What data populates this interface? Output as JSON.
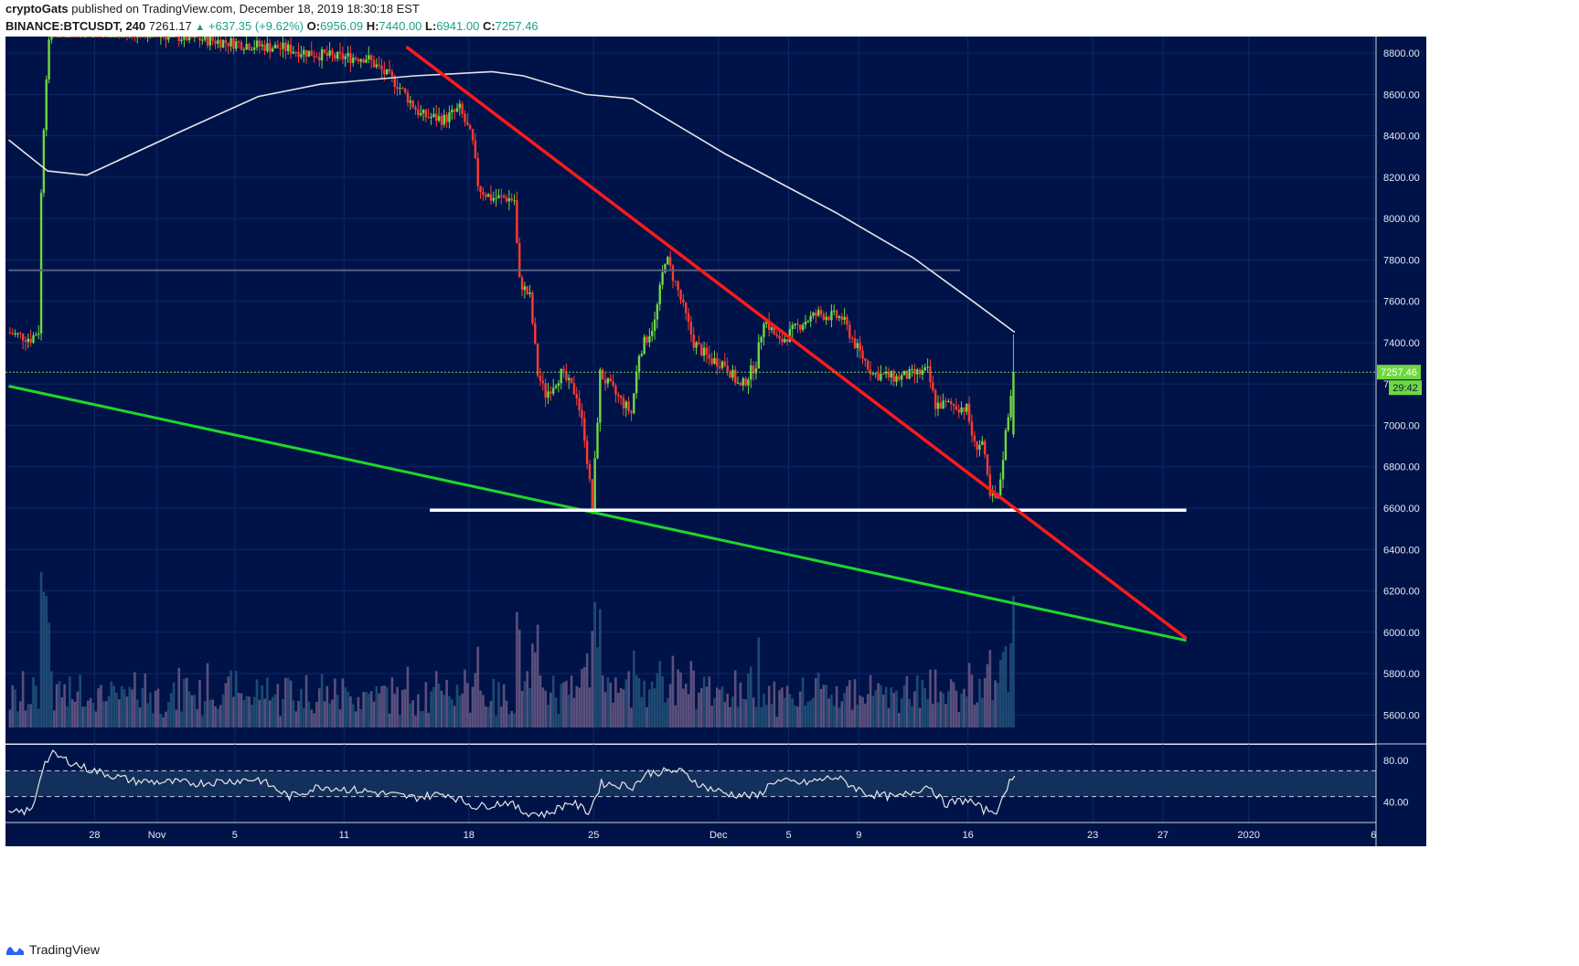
{
  "header": {
    "author": "cryptoGats",
    "published": "published on TradingView.com, December 18, 2019 18:30:18 EST",
    "symbol": "BINANCE:BTCUSDT, 240",
    "last": "7261.17",
    "change": "+637.35 (+9.62%)",
    "o_label": "O:",
    "o": "6956.09",
    "h_label": "H:",
    "h": "7440.00",
    "l_label": "L:",
    "l": "6941.00",
    "c_label": "C:",
    "c": "7257.46"
  },
  "footer": {
    "brand": "TradingView"
  },
  "chart_data": {
    "type": "candlestick",
    "timeframe": "240",
    "colors": {
      "background": "#001348",
      "up": "#6fd841",
      "down": "#ff3b30",
      "ma": "#e6e6e6",
      "resistance_trend": "#ff1a1a",
      "support_trend": "#1fd62d",
      "support_level": "#ffffff",
      "price_tag": "#6fd841"
    },
    "y_axis": {
      "range": [
        5460,
        8880
      ],
      "ticks": [
        "8800.00",
        "8600.00",
        "8400.00",
        "8200.00",
        "8000.00",
        "7800.00",
        "7600.00",
        "7400.00",
        "7200.00",
        "7000.00",
        "6800.00",
        "6600.00",
        "6400.00",
        "6200.00",
        "6000.00",
        "5800.00",
        "5600.00"
      ]
    },
    "x_axis": {
      "labels": [
        "28",
        "Nov",
        "5",
        "11",
        "18",
        "25",
        "Dec",
        "5",
        "9",
        "16",
        "23",
        "27",
        "2020",
        "6"
      ],
      "label_day_index": [
        5.5,
        9.5,
        14.5,
        21.5,
        29.5,
        37.5,
        45.5,
        50,
        54.5,
        61.5,
        69.5,
        74,
        79.5,
        87.5
      ]
    },
    "current_price": {
      "label": "7257.46",
      "timer": "29:42",
      "value": 7257.46
    },
    "ohlc_last_bar": {
      "open": 6956.09,
      "high": 7440.0,
      "low": 6941.0,
      "close": 7257.46
    },
    "price_path": [
      {
        "day": 0,
        "price": 7450
      },
      {
        "day": 1.5,
        "price": 7420
      },
      {
        "day": 2,
        "price": 7460
      },
      {
        "day": 2.2,
        "price": 8250
      },
      {
        "day": 2.5,
        "price": 8700
      },
      {
        "day": 2.8,
        "price": 8950
      },
      {
        "day": 18,
        "price": 8820
      },
      {
        "day": 21,
        "price": 8780
      },
      {
        "day": 23,
        "price": 8780
      },
      {
        "day": 25,
        "price": 8650
      },
      {
        "day": 26.5,
        "price": 8500
      },
      {
        "day": 28,
        "price": 8480
      },
      {
        "day": 29,
        "price": 8530
      },
      {
        "day": 29.8,
        "price": 8380
      },
      {
        "day": 30.2,
        "price": 8150
      },
      {
        "day": 31,
        "price": 8100
      },
      {
        "day": 32,
        "price": 8100
      },
      {
        "day": 32.5,
        "price": 8090
      },
      {
        "day": 32.8,
        "price": 7700
      },
      {
        "day": 33.5,
        "price": 7620
      },
      {
        "day": 34,
        "price": 7250
      },
      {
        "day": 34.5,
        "price": 7150
      },
      {
        "day": 35.5,
        "price": 7250
      },
      {
        "day": 36.5,
        "price": 7150
      },
      {
        "day": 37,
        "price": 6950
      },
      {
        "day": 37.5,
        "price": 6600
      },
      {
        "day": 38,
        "price": 7250
      },
      {
        "day": 39,
        "price": 7150
      },
      {
        "day": 40,
        "price": 7060
      },
      {
        "day": 40.5,
        "price": 7350
      },
      {
        "day": 41.5,
        "price": 7500
      },
      {
        "day": 42.2,
        "price": 7820
      },
      {
        "day": 43,
        "price": 7650
      },
      {
        "day": 44,
        "price": 7400
      },
      {
        "day": 45,
        "price": 7320
      },
      {
        "day": 46,
        "price": 7300
      },
      {
        "day": 47,
        "price": 7180
      },
      {
        "day": 48,
        "price": 7300
      },
      {
        "day": 48.5,
        "price": 7520
      },
      {
        "day": 49.5,
        "price": 7400
      },
      {
        "day": 51,
        "price": 7500
      },
      {
        "day": 52,
        "price": 7540
      },
      {
        "day": 53.5,
        "price": 7520
      },
      {
        "day": 54.5,
        "price": 7370
      },
      {
        "day": 55.5,
        "price": 7250
      },
      {
        "day": 57,
        "price": 7230
      },
      {
        "day": 59,
        "price": 7260
      },
      {
        "day": 59.5,
        "price": 7100
      },
      {
        "day": 60.5,
        "price": 7100
      },
      {
        "day": 61.5,
        "price": 7080
      },
      {
        "day": 62,
        "price": 6900
      },
      {
        "day": 62.5,
        "price": 6920
      },
      {
        "day": 63,
        "price": 6650
      },
      {
        "day": 63.5,
        "price": 6640
      },
      {
        "day": 64,
        "price": 6960
      },
      {
        "day": 64.5,
        "price": 7257
      }
    ],
    "indicators": {
      "moving_average": [
        {
          "day": 0,
          "value": 8380
        },
        {
          "day": 2.5,
          "value": 8230
        },
        {
          "day": 5,
          "value": 8210
        },
        {
          "day": 11,
          "value": 8420
        },
        {
          "day": 16,
          "value": 8590
        },
        {
          "day": 20,
          "value": 8650
        },
        {
          "day": 26,
          "value": 8690
        },
        {
          "day": 31,
          "value": 8710
        },
        {
          "day": 33,
          "value": 8690
        },
        {
          "day": 37,
          "value": 8600
        },
        {
          "day": 40,
          "value": 8580
        },
        {
          "day": 46,
          "value": 8310
        },
        {
          "day": 53,
          "value": 8030
        },
        {
          "day": 58,
          "value": 7810
        },
        {
          "day": 62,
          "value": 7590
        },
        {
          "day": 64.5,
          "value": 7450
        }
      ]
    },
    "drawings": {
      "descending_resistance": {
        "from": {
          "day": 25.5,
          "price": 8830
        },
        "to": {
          "day": 75.5,
          "price": 5970
        }
      },
      "descending_support": {
        "from": {
          "day": 0,
          "price": 7190
        },
        "to": {
          "day": 75.5,
          "price": 5960
        }
      },
      "horizontal_support": {
        "from_day": 27,
        "to_day": 75.5,
        "price": 6590
      },
      "horizontal_resistance": {
        "from_day": 0,
        "to_day": 61,
        "price": 7750
      }
    },
    "volume_panel": {
      "range": [
        0,
        1
      ]
    },
    "rsi_panel": {
      "range": [
        20,
        95
      ],
      "ticks": [
        "80.00",
        "40.00"
      ],
      "band": [
        70,
        45
      ],
      "values": [
        {
          "day": 0,
          "v": 28
        },
        {
          "day": 1.5,
          "v": 32
        },
        {
          "day": 2.2,
          "v": 75
        },
        {
          "day": 2.8,
          "v": 86
        },
        {
          "day": 5,
          "v": 72
        },
        {
          "day": 8,
          "v": 60
        },
        {
          "day": 12,
          "v": 58
        },
        {
          "day": 16,
          "v": 62
        },
        {
          "day": 18,
          "v": 45
        },
        {
          "day": 20,
          "v": 55
        },
        {
          "day": 23,
          "v": 50
        },
        {
          "day": 26,
          "v": 44
        },
        {
          "day": 28,
          "v": 48
        },
        {
          "day": 30,
          "v": 35
        },
        {
          "day": 32,
          "v": 40
        },
        {
          "day": 33,
          "v": 30
        },
        {
          "day": 34.5,
          "v": 28
        },
        {
          "day": 36,
          "v": 40
        },
        {
          "day": 37.2,
          "v": 30
        },
        {
          "day": 38,
          "v": 58
        },
        {
          "day": 40,
          "v": 55
        },
        {
          "day": 41,
          "v": 68
        },
        {
          "day": 43,
          "v": 70
        },
        {
          "day": 44.5,
          "v": 55
        },
        {
          "day": 46,
          "v": 48
        },
        {
          "day": 48,
          "v": 45
        },
        {
          "day": 49,
          "v": 60
        },
        {
          "day": 51,
          "v": 58
        },
        {
          "day": 53,
          "v": 64
        },
        {
          "day": 55,
          "v": 48
        },
        {
          "day": 57,
          "v": 44
        },
        {
          "day": 59,
          "v": 56
        },
        {
          "day": 60,
          "v": 38
        },
        {
          "day": 61.5,
          "v": 42
        },
        {
          "day": 62.5,
          "v": 32
        },
        {
          "day": 63.5,
          "v": 32
        },
        {
          "day": 64,
          "v": 55
        },
        {
          "day": 64.5,
          "v": 68
        }
      ]
    }
  }
}
